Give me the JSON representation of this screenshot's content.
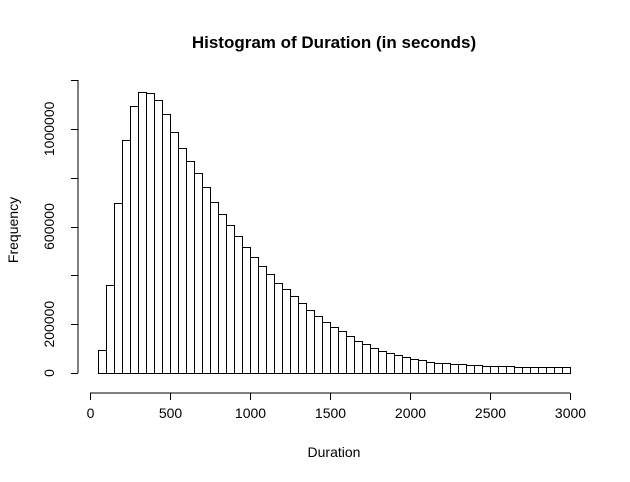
{
  "chart_data": {
    "type": "bar",
    "title": "Histogram of Duration (in seconds)",
    "xlabel": "Duration",
    "ylabel": "Frequency",
    "xlim": [
      0,
      3000
    ],
    "ylim": [
      0,
      1200000
    ],
    "x_ticks": [
      0,
      500,
      1000,
      1500,
      2000,
      2500,
      3000
    ],
    "y_ticks": [
      0,
      200000,
      600000,
      1000000
    ],
    "bin_width": 50,
    "bin_starts": [
      50,
      100,
      150,
      200,
      250,
      300,
      350,
      400,
      450,
      500,
      550,
      600,
      650,
      700,
      750,
      800,
      850,
      900,
      950,
      1000,
      1050,
      1100,
      1150,
      1200,
      1250,
      1300,
      1350,
      1400,
      1450,
      1500,
      1550,
      1600,
      1650,
      1700,
      1750,
      1800,
      1850,
      1900,
      1950,
      2000,
      2050,
      2100,
      2150,
      2200,
      2250,
      2300,
      2350,
      2400,
      2450,
      2500,
      2550,
      2600,
      2650,
      2700,
      2750,
      2800,
      2850,
      2900,
      2950
    ],
    "values": [
      95000,
      360000,
      695000,
      955000,
      1095000,
      1150000,
      1145000,
      1120000,
      1060000,
      985000,
      920000,
      870000,
      820000,
      760000,
      700000,
      650000,
      605000,
      560000,
      515000,
      475000,
      440000,
      405000,
      370000,
      345000,
      315000,
      285000,
      260000,
      235000,
      210000,
      190000,
      170000,
      150000,
      133000,
      118000,
      104000,
      92000,
      82000,
      73000,
      65000,
      58000,
      52000,
      47000,
      43000,
      40000,
      37000,
      35000,
      33000,
      31000,
      30000,
      29000,
      28000,
      27000,
      26000,
      25000,
      25000,
      24000,
      24000,
      23000,
      23000
    ]
  }
}
